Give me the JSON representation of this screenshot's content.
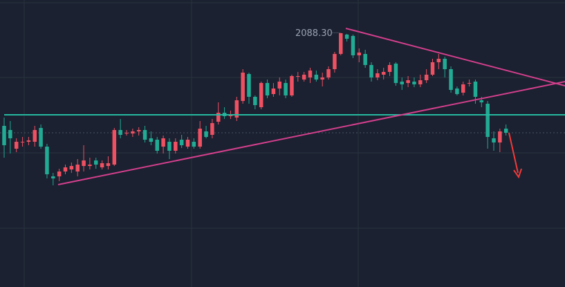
{
  "chart_data": {
    "type": "candlestick",
    "up_color": "#ef5062",
    "down_color": "#22ab94",
    "ylim": [
      1904.5,
      2112
    ],
    "open": [
      2021,
      2018,
      2004.5,
      2009.5,
      2009.5,
      2009.5,
      2019.5,
      2006,
      1984.5,
      1984.5,
      1988,
      1989.5,
      1988,
      1992,
      1992,
      1996,
      1991,
      1992,
      1993,
      2018,
      2015.5,
      2015.5,
      2017,
      2018,
      2012,
      2011,
      2006,
      2009.5,
      2003,
      2011,
      2006,
      2009.5,
      2006,
      2017,
      2014.5,
      2024,
      2030.5,
      2028,
      2027,
      2039,
      2058.5,
      2042,
      2034.5,
      2052,
      2044,
      2048,
      2052,
      2043,
      2057,
      2054.5,
      2056,
      2058,
      2054.5,
      2056,
      2062,
      2073,
      2087,
      2086,
      2072,
      2073,
      2065,
      2056,
      2058,
      2060,
      2066,
      2053,
      2052,
      2053,
      2051,
      2054,
      2058,
      2067,
      2069.5,
      2062,
      2048,
      2045,
      2052,
      2053,
      2039.5,
      2037,
      2012,
      2009,
      2019
    ],
    "close": [
      2007,
      2012,
      2009.5,
      2009.5,
      2010.5,
      2018,
      2006,
      1986,
      1983,
      1988,
      1991,
      1992,
      1993,
      1996,
      1993,
      1993,
      1994,
      1994,
      2018,
      2014.5,
      2016,
      2017,
      2018,
      2011,
      2009.5,
      2003,
      2012,
      2003,
      2009.5,
      2007,
      2011,
      2006,
      2019,
      2013,
      2023,
      2030.5,
      2028,
      2029.5,
      2039.5,
      2059.5,
      2042,
      2036,
      2052,
      2043,
      2048,
      2053,
      2043,
      2057,
      2057,
      2058,
      2061,
      2054.5,
      2056,
      2062,
      2073,
      2088,
      2084,
      2072,
      2074,
      2065,
      2056,
      2059,
      2060,
      2065,
      2052,
      2051,
      2054,
      2051,
      2054,
      2058,
      2067,
      2069.5,
      2062,
      2047,
      2044,
      2051,
      2052,
      2042,
      2038,
      2013,
      2009,
      2017,
      2016
    ],
    "high": [
      2027,
      2024.5,
      2012,
      2013,
      2013,
      2021,
      2022,
      2008,
      1987,
      1990,
      1993,
      1994.5,
      1997,
      2007,
      1998,
      1998,
      1996,
      1999,
      2019.5,
      2026,
      2018,
      2019,
      2020,
      2021,
      2017,
      2013,
      2014,
      2012,
      2012,
      2014.5,
      2013,
      2012,
      2024.5,
      2021,
      2026,
      2038,
      2034.5,
      2032,
      2042,
      2062,
      2059.5,
      2043,
      2053,
      2054.5,
      2052,
      2056,
      2054.5,
      2058,
      2060,
      2060,
      2063,
      2061,
      2059.5,
      2064,
      2074.5,
      2088.3,
      2087.5,
      2087,
      2077,
      2076,
      2067,
      2062,
      2063,
      2067,
      2067,
      2056,
      2057,
      2056,
      2058,
      2062,
      2069.5,
      2073,
      2071,
      2064,
      2049.5,
      2053,
      2054.5,
      2054.5,
      2042,
      2039,
      2017,
      2019,
      2022
    ],
    "low": [
      1998,
      2001,
      2002,
      2006,
      2007,
      2006,
      2004.5,
      1983,
      1978,
      1981,
      1986,
      1987,
      1984.5,
      1988,
      1989.5,
      1990,
      1989.5,
      1989.5,
      1992,
      2012,
      2014,
      2013,
      2014,
      2009,
      2007,
      2001,
      2001,
      1997,
      2001,
      2005,
      2004.5,
      2004.5,
      2004.5,
      2012,
      2012,
      2022,
      2026,
      2026,
      2024.5,
      2037,
      2037,
      2033,
      2033,
      2041,
      2042,
      2043,
      2041,
      2042,
      2053,
      2053,
      2052,
      2053,
      2049.5,
      2054.5,
      2059.5,
      2072,
      2082,
      2070,
      2067,
      2063,
      2053,
      2054,
      2054.5,
      2057,
      2050,
      2047,
      2049,
      2049,
      2049,
      2052,
      2057,
      2062,
      2056,
      2045,
      2043,
      2043,
      2049.5,
      2037,
      2034.5,
      2004.5,
      2003,
      2002,
      2014
    ],
    "annotations": [
      {
        "value": 2088.3,
        "label": "2088.30"
      }
    ]
  }
}
